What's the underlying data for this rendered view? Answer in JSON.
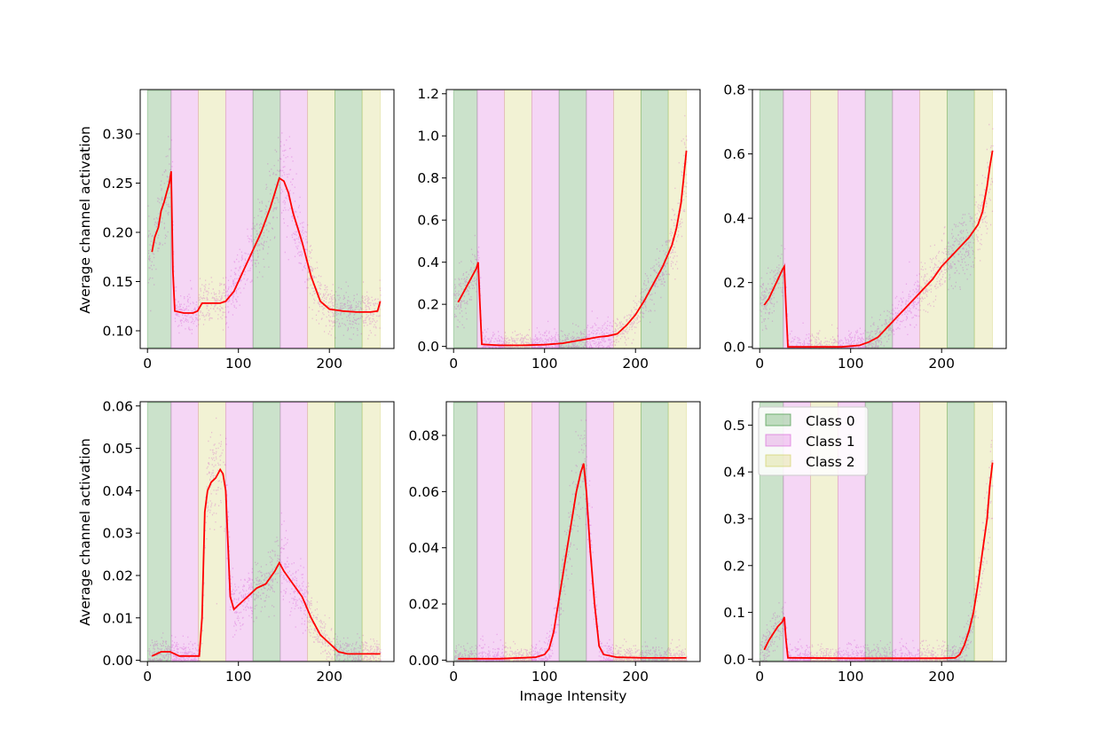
{
  "figure": {
    "xlabel": "Image Intensity",
    "ylabel": "Average channel activation"
  },
  "colors": {
    "mean_line": "#ff0000",
    "scatter": "#c000c0",
    "class_0": "#2e8b2e",
    "class_1": "#d65bd6",
    "class_2": "#cdcd55"
  },
  "legend": {
    "items": [
      {
        "label": "Class 0",
        "color_key": "class_0"
      },
      {
        "label": "Class 1",
        "color_key": "class_1"
      },
      {
        "label": "Class 2",
        "color_key": "class_2"
      }
    ],
    "location": "upper-left of bottom-right panel"
  },
  "chart_data": {
    "type": "line",
    "bands": [
      {
        "x": [
          0,
          26
        ],
        "class": 0
      },
      {
        "x": [
          26,
          56
        ],
        "class": 1
      },
      {
        "x": [
          56,
          86
        ],
        "class": 2
      },
      {
        "x": [
          86,
          116
        ],
        "class": 1
      },
      {
        "x": [
          116,
          146
        ],
        "class": 0
      },
      {
        "x": [
          146,
          176
        ],
        "class": 1
      },
      {
        "x": [
          176,
          206
        ],
        "class": 2
      },
      {
        "x": [
          206,
          236
        ],
        "class": 0
      },
      {
        "x": [
          236,
          256
        ],
        "class": 2
      }
    ],
    "panels": [
      {
        "name": "panel-1",
        "xlim": [
          -8,
          271
        ],
        "ylim": [
          0.082,
          0.345
        ],
        "xticks": [
          0,
          100,
          200
        ],
        "yticks": [
          0.1,
          0.15,
          0.2,
          0.25,
          0.3
        ],
        "ytick_labels": [
          "0.10",
          "0.15",
          "0.20",
          "0.25",
          "0.30"
        ],
        "show_ylabel": true,
        "mean": [
          [
            5,
            0.18
          ],
          [
            8,
            0.195
          ],
          [
            12,
            0.205
          ],
          [
            15,
            0.222
          ],
          [
            18,
            0.23
          ],
          [
            21,
            0.24
          ],
          [
            24,
            0.25
          ],
          [
            26,
            0.262
          ],
          [
            28,
            0.16
          ],
          [
            30,
            0.12
          ],
          [
            40,
            0.118
          ],
          [
            50,
            0.118
          ],
          [
            55,
            0.12
          ],
          [
            60,
            0.128
          ],
          [
            70,
            0.128
          ],
          [
            80,
            0.128
          ],
          [
            86,
            0.13
          ],
          [
            95,
            0.14
          ],
          [
            105,
            0.16
          ],
          [
            115,
            0.18
          ],
          [
            125,
            0.2
          ],
          [
            135,
            0.225
          ],
          [
            140,
            0.24
          ],
          [
            145,
            0.255
          ],
          [
            150,
            0.252
          ],
          [
            155,
            0.24
          ],
          [
            160,
            0.22
          ],
          [
            170,
            0.19
          ],
          [
            180,
            0.155
          ],
          [
            190,
            0.13
          ],
          [
            200,
            0.122
          ],
          [
            215,
            0.12
          ],
          [
            230,
            0.119
          ],
          [
            245,
            0.119
          ],
          [
            253,
            0.12
          ],
          [
            256,
            0.13
          ]
        ]
      },
      {
        "name": "panel-2",
        "xlim": [
          -8,
          271
        ],
        "ylim": [
          -0.01,
          1.22
        ],
        "xticks": [
          0,
          100,
          200
        ],
        "yticks": [
          0.0,
          0.2,
          0.4,
          0.6,
          0.8,
          1.0,
          1.2
        ],
        "ytick_labels": [
          "0.0",
          "0.2",
          "0.4",
          "0.6",
          "0.8",
          "1.0",
          "1.2"
        ],
        "show_ylabel": false,
        "mean": [
          [
            5,
            0.21
          ],
          [
            10,
            0.25
          ],
          [
            15,
            0.29
          ],
          [
            20,
            0.33
          ],
          [
            25,
            0.37
          ],
          [
            27,
            0.4
          ],
          [
            29,
            0.2
          ],
          [
            31,
            0.01
          ],
          [
            50,
            0.005
          ],
          [
            75,
            0.005
          ],
          [
            100,
            0.008
          ],
          [
            120,
            0.015
          ],
          [
            140,
            0.03
          ],
          [
            160,
            0.045
          ],
          [
            170,
            0.05
          ],
          [
            180,
            0.06
          ],
          [
            190,
            0.1
          ],
          [
            200,
            0.15
          ],
          [
            210,
            0.22
          ],
          [
            220,
            0.3
          ],
          [
            230,
            0.38
          ],
          [
            240,
            0.48
          ],
          [
            245,
            0.56
          ],
          [
            250,
            0.68
          ],
          [
            253,
            0.8
          ],
          [
            256,
            0.93
          ]
        ]
      },
      {
        "name": "panel-3",
        "xlim": [
          -8,
          271
        ],
        "ylim": [
          -0.005,
          0.8
        ],
        "xticks": [
          0,
          100,
          200
        ],
        "yticks": [
          0.0,
          0.2,
          0.4,
          0.6,
          0.8
        ],
        "ytick_labels": [
          "0.0",
          "0.2",
          "0.4",
          "0.6",
          "0.8"
        ],
        "show_ylabel": false,
        "mean": [
          [
            5,
            0.13
          ],
          [
            10,
            0.15
          ],
          [
            15,
            0.18
          ],
          [
            20,
            0.21
          ],
          [
            25,
            0.24
          ],
          [
            27,
            0.25
          ],
          [
            29,
            0.12
          ],
          [
            31,
            0.0
          ],
          [
            60,
            0.0
          ],
          [
            90,
            0.0
          ],
          [
            110,
            0.005
          ],
          [
            120,
            0.015
          ],
          [
            130,
            0.03
          ],
          [
            140,
            0.06
          ],
          [
            150,
            0.09
          ],
          [
            160,
            0.12
          ],
          [
            170,
            0.15
          ],
          [
            180,
            0.18
          ],
          [
            190,
            0.21
          ],
          [
            200,
            0.25
          ],
          [
            210,
            0.28
          ],
          [
            220,
            0.31
          ],
          [
            230,
            0.34
          ],
          [
            240,
            0.38
          ],
          [
            245,
            0.42
          ],
          [
            250,
            0.5
          ],
          [
            253,
            0.56
          ],
          [
            256,
            0.61
          ]
        ]
      },
      {
        "name": "panel-4",
        "xlim": [
          -8,
          271
        ],
        "ylim": [
          -0.0003,
          0.061
        ],
        "xticks": [
          0,
          100,
          200
        ],
        "yticks": [
          0.0,
          0.01,
          0.02,
          0.03,
          0.04,
          0.05,
          0.06
        ],
        "ytick_labels": [
          "0.00",
          "0.01",
          "0.02",
          "0.03",
          "0.04",
          "0.05",
          "0.06"
        ],
        "show_ylabel": true,
        "mean": [
          [
            5,
            0.001
          ],
          [
            15,
            0.002
          ],
          [
            25,
            0.002
          ],
          [
            35,
            0.001
          ],
          [
            50,
            0.001
          ],
          [
            57,
            0.001
          ],
          [
            60,
            0.01
          ],
          [
            63,
            0.035
          ],
          [
            66,
            0.04
          ],
          [
            70,
            0.042
          ],
          [
            75,
            0.043
          ],
          [
            80,
            0.045
          ],
          [
            83,
            0.044
          ],
          [
            86,
            0.04
          ],
          [
            88,
            0.03
          ],
          [
            91,
            0.015
          ],
          [
            95,
            0.012
          ],
          [
            100,
            0.013
          ],
          [
            110,
            0.015
          ],
          [
            120,
            0.017
          ],
          [
            130,
            0.018
          ],
          [
            140,
            0.021
          ],
          [
            145,
            0.023
          ],
          [
            150,
            0.021
          ],
          [
            160,
            0.018
          ],
          [
            170,
            0.015
          ],
          [
            180,
            0.01
          ],
          [
            190,
            0.006
          ],
          [
            200,
            0.004
          ],
          [
            210,
            0.002
          ],
          [
            220,
            0.0015
          ],
          [
            240,
            0.0015
          ],
          [
            256,
            0.0015
          ]
        ]
      },
      {
        "name": "panel-5",
        "xlim": [
          -8,
          271
        ],
        "ylim": [
          -0.0005,
          0.092
        ],
        "xticks": [
          0,
          100,
          200
        ],
        "yticks": [
          0.0,
          0.02,
          0.04,
          0.06,
          0.08
        ],
        "ytick_labels": [
          "0.00",
          "0.02",
          "0.04",
          "0.06",
          "0.08"
        ],
        "show_ylabel": false,
        "mean": [
          [
            5,
            0.0005
          ],
          [
            50,
            0.0005
          ],
          [
            90,
            0.001
          ],
          [
            100,
            0.002
          ],
          [
            105,
            0.004
          ],
          [
            110,
            0.01
          ],
          [
            115,
            0.02
          ],
          [
            120,
            0.03
          ],
          [
            125,
            0.04
          ],
          [
            130,
            0.05
          ],
          [
            135,
            0.06
          ],
          [
            140,
            0.067
          ],
          [
            143,
            0.07
          ],
          [
            146,
            0.06
          ],
          [
            150,
            0.04
          ],
          [
            155,
            0.02
          ],
          [
            160,
            0.005
          ],
          [
            165,
            0.002
          ],
          [
            180,
            0.001
          ],
          [
            210,
            0.0008
          ],
          [
            256,
            0.0008
          ]
        ]
      },
      {
        "name": "panel-6",
        "xlim": [
          -8,
          271
        ],
        "ylim": [
          -0.005,
          0.55
        ],
        "xticks": [
          0,
          100,
          200
        ],
        "yticks": [
          0.0,
          0.1,
          0.2,
          0.3,
          0.4,
          0.5
        ],
        "ytick_labels": [
          "0.0",
          "0.1",
          "0.2",
          "0.3",
          "0.4",
          "0.5"
        ],
        "show_ylabel": false,
        "show_legend": true,
        "mean": [
          [
            5,
            0.02
          ],
          [
            10,
            0.04
          ],
          [
            15,
            0.055
          ],
          [
            20,
            0.07
          ],
          [
            25,
            0.08
          ],
          [
            27,
            0.09
          ],
          [
            29,
            0.04
          ],
          [
            31,
            0.003
          ],
          [
            100,
            0.002
          ],
          [
            200,
            0.002
          ],
          [
            215,
            0.003
          ],
          [
            220,
            0.01
          ],
          [
            225,
            0.03
          ],
          [
            230,
            0.06
          ],
          [
            235,
            0.1
          ],
          [
            240,
            0.16
          ],
          [
            245,
            0.23
          ],
          [
            250,
            0.3
          ],
          [
            253,
            0.37
          ],
          [
            256,
            0.42
          ]
        ]
      }
    ]
  }
}
